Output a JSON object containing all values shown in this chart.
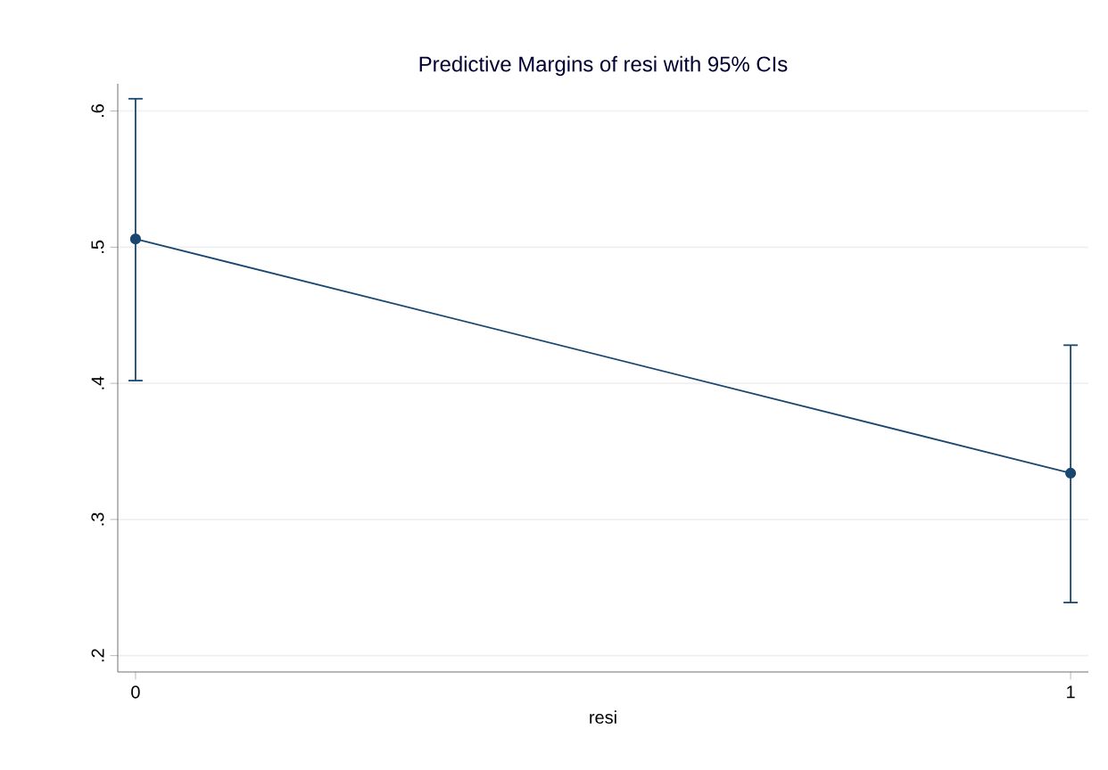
{
  "chart_data": {
    "type": "line",
    "title": "Predictive Margins of resi with 95% CIs",
    "xlabel": "resi",
    "x": [
      0,
      1
    ],
    "series": [
      {
        "color": "#1a476f",
        "values": [
          0.506,
          0.334
        ],
        "errors": [
          [
            0.402,
            0.609
          ],
          [
            0.239,
            0.428
          ]
        ]
      }
    ],
    "xlim": [
      -0.019,
      1.019
    ],
    "xticks": [
      0,
      1
    ],
    "ylim": [
      0.188,
      0.62
    ],
    "yticks": [
      {
        "value": 0.2,
        "label": ".2"
      },
      {
        "value": 0.3,
        "label": ".3"
      },
      {
        "value": 0.4,
        "label": ".4"
      },
      {
        "value": 0.5,
        "label": ".5"
      },
      {
        "value": 0.6,
        "label": ".6"
      }
    ],
    "grid": "y",
    "marker": "circle",
    "line_style": "solid"
  }
}
